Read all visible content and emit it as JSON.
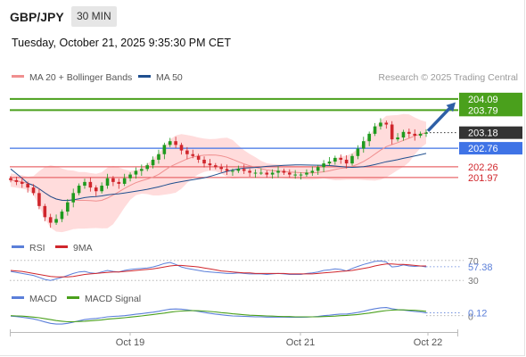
{
  "header": {
    "symbol": "GBP/JPY",
    "timeframe": "30 MIN",
    "datetime": "Tuesday, October 21, 2025 9:35:30 PM CET"
  },
  "colors": {
    "resistance": "#4aa01c",
    "support": "#e8696c",
    "pivot": "#3f73e6",
    "price": "#333333",
    "bollinger": "#ffd0d0",
    "ma20": "#f08f8f",
    "ma50": "#1f4f8f",
    "up_candle": "#1e9a1e",
    "down_candle": "#d0262c",
    "rsi": "#5b7fd9",
    "rsi_ma": "#d0262c",
    "macd": "#5b7fd9",
    "macd_signal": "#4aa01c",
    "arrow": "#2e5fa6"
  },
  "chart_data": [
    {
      "type": "candlestick",
      "panel": "price",
      "legend": [
        {
          "label": "MA 20 + Bollinger Bands",
          "color": "#f08f8f"
        },
        {
          "label": "MA 50",
          "color": "#1f4f8f"
        }
      ],
      "legend_position": "top-left",
      "watermark": "Research © 2025 Trading Central",
      "levels": [
        {
          "value": 204.09,
          "label": "204.09",
          "kind": "resistance"
        },
        {
          "value": 203.79,
          "label": "203.79",
          "kind": "resistance"
        },
        {
          "value": 203.18,
          "label": "203.18",
          "kind": "price"
        },
        {
          "value": 202.76,
          "label": "202.76",
          "kind": "pivot"
        },
        {
          "value": 202.26,
          "label": "202.26",
          "kind": "support"
        },
        {
          "value": 201.97,
          "label": "201.97",
          "kind": "support"
        }
      ],
      "ylim": [
        200.45,
        204.4
      ],
      "x_ticks": [
        "Oct 19",
        "Oct 21",
        "Oct 22"
      ],
      "close": [
        201.9,
        201.85,
        201.8,
        201.7,
        201.55,
        201.2,
        200.9,
        200.75,
        200.85,
        201.05,
        201.3,
        201.55,
        201.75,
        201.85,
        201.7,
        201.6,
        201.75,
        201.95,
        201.85,
        201.8,
        201.95,
        202.05,
        202.15,
        202.2,
        202.3,
        202.45,
        202.6,
        202.85,
        202.95,
        202.85,
        202.7,
        202.6,
        202.55,
        202.45,
        202.35,
        202.3,
        202.25,
        202.2,
        202.15,
        202.15,
        202.2,
        202.15,
        202.1,
        202.1,
        202.1,
        202.05,
        202.1,
        202.15,
        202.1,
        202.05,
        202.05,
        202.05,
        202.1,
        202.15,
        202.25,
        202.35,
        202.4,
        202.5,
        202.45,
        202.35,
        202.55,
        202.75,
        202.95,
        203.15,
        203.35,
        203.45,
        203.4,
        203.0,
        203.05,
        203.2,
        203.15,
        203.1,
        203.15,
        203.18
      ],
      "arrow_target": 204.0
    },
    {
      "type": "line",
      "panel": "rsi",
      "legend": [
        {
          "label": "RSI",
          "color": "#5b7fd9"
        },
        {
          "label": "9MA",
          "color": "#d0262c"
        }
      ],
      "ylim": [
        25,
        75
      ],
      "levels": [
        {
          "value": 70,
          "label": "70"
        },
        {
          "value": 30,
          "label": "30"
        }
      ],
      "current_value": 57.38,
      "current_label": "57.38",
      "series": [
        {
          "name": "RSI",
          "values": [
            48,
            46,
            44,
            42,
            40,
            36,
            32,
            30,
            33,
            36,
            40,
            44,
            47,
            48,
            45,
            44,
            47,
            50,
            48,
            47,
            50,
            52,
            53,
            54,
            55,
            57,
            60,
            64,
            66,
            62,
            57,
            54,
            52,
            50,
            48,
            47,
            46,
            45,
            44,
            44,
            45,
            44,
            43,
            43,
            43,
            42,
            43,
            44,
            43,
            42,
            42,
            42,
            44,
            45,
            47,
            50,
            51,
            53,
            52,
            49,
            54,
            58,
            62,
            65,
            68,
            69,
            67,
            57,
            58,
            61,
            59,
            58,
            59,
            57
          ]
        },
        {
          "name": "9MA",
          "values": [
            50,
            49,
            48,
            46,
            44,
            42,
            40,
            38,
            37,
            37,
            37,
            38,
            40,
            42,
            43,
            44,
            45,
            46,
            47,
            47,
            48,
            49,
            50,
            51,
            52,
            53,
            55,
            57,
            59,
            60,
            60,
            59,
            58,
            57,
            55,
            53,
            51,
            49,
            48,
            47,
            46,
            45,
            45,
            44,
            44,
            44,
            44,
            44,
            44,
            43,
            43,
            43,
            43,
            43,
            44,
            45,
            46,
            47,
            48,
            49,
            50,
            52,
            54,
            56,
            59,
            61,
            63,
            63,
            62,
            62,
            61,
            60,
            59,
            59
          ]
        }
      ]
    },
    {
      "type": "line",
      "panel": "macd",
      "legend": [
        {
          "label": "MACD",
          "color": "#5b7fd9"
        },
        {
          "label": "MACD Signal",
          "color": "#4aa01c"
        }
      ],
      "ylim": [
        -0.55,
        0.45
      ],
      "zero_label": "0",
      "current_value": 0.12,
      "current_label": "0.12",
      "series": [
        {
          "name": "MACD",
          "values": [
            -0.02,
            -0.04,
            -0.07,
            -0.1,
            -0.14,
            -0.2,
            -0.27,
            -0.33,
            -0.36,
            -0.36,
            -0.33,
            -0.28,
            -0.22,
            -0.17,
            -0.14,
            -0.12,
            -0.09,
            -0.05,
            -0.03,
            -0.02,
            0.0,
            0.03,
            0.06,
            0.09,
            0.12,
            0.15,
            0.19,
            0.24,
            0.28,
            0.29,
            0.28,
            0.25,
            0.22,
            0.18,
            0.14,
            0.1,
            0.07,
            0.04,
            0.01,
            -0.01,
            -0.02,
            -0.03,
            -0.04,
            -0.05,
            -0.05,
            -0.06,
            -0.06,
            -0.06,
            -0.06,
            -0.07,
            -0.07,
            -0.07,
            -0.06,
            -0.05,
            -0.03,
            0.0,
            0.02,
            0.05,
            0.07,
            0.07,
            0.1,
            0.14,
            0.19,
            0.25,
            0.3,
            0.34,
            0.35,
            0.3,
            0.26,
            0.24,
            0.21,
            0.18,
            0.16,
            0.12
          ]
        },
        {
          "name": "MACD Signal",
          "values": [
            0.0,
            -0.01,
            -0.02,
            -0.04,
            -0.06,
            -0.09,
            -0.13,
            -0.17,
            -0.21,
            -0.24,
            -0.26,
            -0.26,
            -0.25,
            -0.24,
            -0.22,
            -0.2,
            -0.18,
            -0.15,
            -0.13,
            -0.11,
            -0.09,
            -0.06,
            -0.04,
            -0.01,
            0.02,
            0.05,
            0.08,
            0.11,
            0.15,
            0.18,
            0.2,
            0.21,
            0.22,
            0.21,
            0.2,
            0.18,
            0.16,
            0.13,
            0.11,
            0.08,
            0.06,
            0.04,
            0.02,
            0.01,
            0.0,
            -0.01,
            -0.02,
            -0.03,
            -0.04,
            -0.04,
            -0.05,
            -0.05,
            -0.05,
            -0.05,
            -0.05,
            -0.04,
            -0.03,
            -0.02,
            0.0,
            0.01,
            0.03,
            0.05,
            0.08,
            0.11,
            0.15,
            0.19,
            0.22,
            0.24,
            0.25,
            0.25,
            0.24,
            0.23,
            0.21,
            0.19
          ]
        }
      ]
    }
  ]
}
